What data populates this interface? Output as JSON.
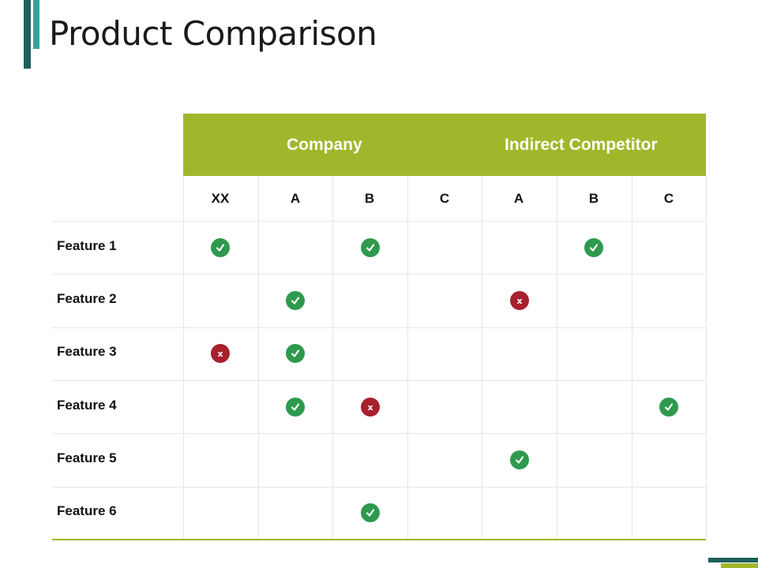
{
  "slide": {
    "title": "Product Comparison"
  },
  "table": {
    "groups": [
      {
        "label": "Company"
      },
      {
        "label": "Indirect Competitor"
      }
    ],
    "columns": [
      "XX",
      "A",
      "B",
      "C",
      "A",
      "B",
      "C"
    ],
    "rows": [
      {
        "label": "Feature 1",
        "cells": [
          "check",
          "",
          "check",
          "",
          "",
          "check",
          ""
        ]
      },
      {
        "label": "Feature 2",
        "cells": [
          "",
          "check",
          "",
          "",
          "cross",
          "",
          ""
        ]
      },
      {
        "label": "Feature 3",
        "cells": [
          "cross",
          "check",
          "",
          "",
          "",
          "",
          ""
        ]
      },
      {
        "label": "Feature 4",
        "cells": [
          "",
          "check",
          "cross",
          "",
          "",
          "",
          "check"
        ]
      },
      {
        "label": "Feature 5",
        "cells": [
          "",
          "",
          "",
          "",
          "check",
          "",
          ""
        ]
      },
      {
        "label": "Feature 6",
        "cells": [
          "",
          "",
          "check",
          "",
          "",
          "",
          ""
        ]
      }
    ],
    "cross_glyph": "x",
    "colors": {
      "header_green": "#a1b72b",
      "check_green": "#2e9a4e",
      "cross_red": "#a8202e",
      "accent_teal": "#1f5f5b"
    }
  }
}
